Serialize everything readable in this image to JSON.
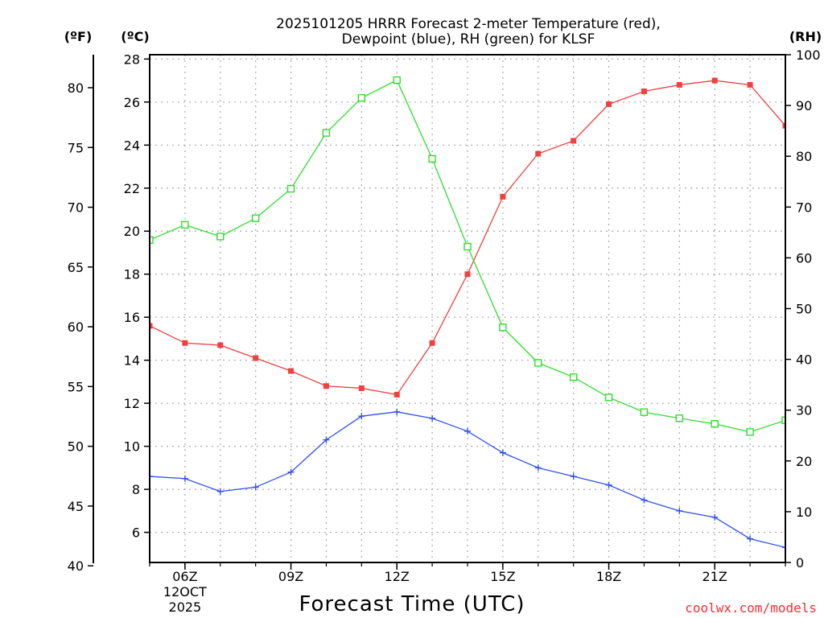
{
  "chart_data": {
    "type": "line",
    "title_line1": "2025101205 HRRR Forecast 2-meter Temperature (red),",
    "title_line2": "Dewpoint (blue), RH (green) for KLSF",
    "xlabel": "Forecast Time (UTC)",
    "credit": "coolwx.com/models",
    "units": {
      "fahrenheit": "(ºF)",
      "celsius": "(ºC)",
      "rh": "(RH)"
    },
    "x": [
      5,
      6,
      7,
      8,
      9,
      10,
      11,
      12,
      13,
      14,
      15,
      16,
      17,
      18,
      19,
      20,
      21,
      22,
      23
    ],
    "xlim": [
      5,
      23
    ],
    "x_ticks": [
      {
        "x": 6,
        "label": "06Z"
      },
      {
        "x": 9,
        "label": "09Z"
      },
      {
        "x": 12,
        "label": "12Z"
      },
      {
        "x": 15,
        "label": "15Z"
      },
      {
        "x": 18,
        "label": "18Z"
      },
      {
        "x": 21,
        "label": "21Z"
      }
    ],
    "date_label_lines": [
      "12OCT",
      "2025"
    ],
    "celsius_axis": {
      "ylim": [
        4.6,
        28.2
      ],
      "ticks": [
        6,
        8,
        10,
        12,
        14,
        16,
        18,
        20,
        22,
        24,
        26,
        28
      ]
    },
    "fahrenheit_axis": {
      "ylim": [
        40.28,
        82.76
      ],
      "ticks": [
        40,
        45,
        50,
        55,
        60,
        65,
        70,
        75,
        80
      ]
    },
    "rh_axis": {
      "ylim": [
        0,
        100
      ],
      "ticks": [
        0,
        10,
        20,
        30,
        40,
        50,
        60,
        70,
        80,
        90,
        100
      ]
    },
    "grid": true,
    "series": [
      {
        "name": "Temperature",
        "axis": "celsius",
        "color": "#f04040",
        "marker": "filled-square",
        "values": [
          15.6,
          14.8,
          14.7,
          14.1,
          13.5,
          12.8,
          12.7,
          12.4,
          14.8,
          18.0,
          21.6,
          23.6,
          24.2,
          25.9,
          26.5,
          26.8,
          27.0,
          26.8,
          24.9
        ]
      },
      {
        "name": "Dewpoint",
        "axis": "celsius",
        "color": "#3050f0",
        "marker": "plus",
        "values": [
          8.6,
          8.5,
          7.9,
          8.1,
          8.8,
          10.3,
          11.4,
          11.6,
          11.3,
          10.7,
          9.7,
          9.0,
          8.6,
          8.2,
          7.5,
          7.0,
          6.7,
          5.7,
          5.3
        ]
      },
      {
        "name": "Relative Humidity",
        "axis": "rh",
        "color": "#30dd30",
        "marker": "open-square",
        "values": [
          63.5,
          66.5,
          64.2,
          67.8,
          73.6,
          84.6,
          91.5,
          95.0,
          79.5,
          62.2,
          46.3,
          39.3,
          36.5,
          32.5,
          29.6,
          28.4,
          27.3,
          25.7,
          28.0
        ]
      }
    ]
  }
}
